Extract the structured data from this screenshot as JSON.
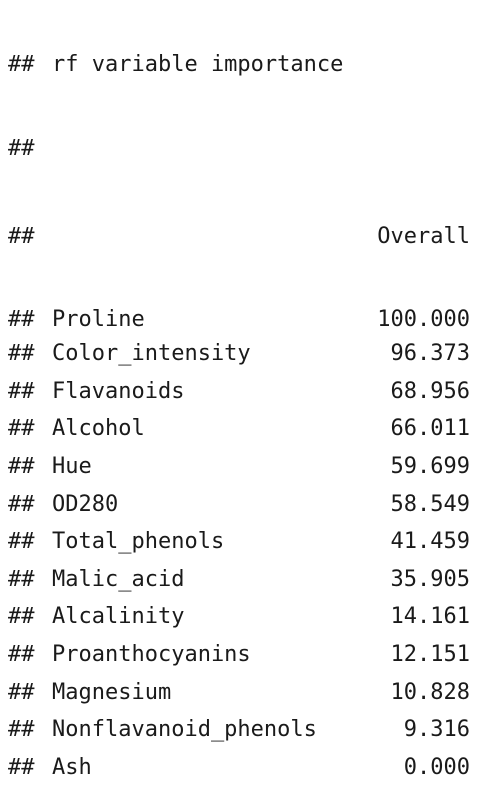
{
  "console": {
    "prefix": "##",
    "title": "rf variable importance",
    "column_header": "Overall",
    "rows": [
      {
        "name": "Proline",
        "value": "100.000"
      },
      {
        "name": "Color_intensity",
        "value": "96.373"
      },
      {
        "name": "Flavanoids",
        "value": "68.956"
      },
      {
        "name": "Alcohol",
        "value": "66.011"
      },
      {
        "name": "Hue",
        "value": "59.699"
      },
      {
        "name": "OD280",
        "value": "58.549"
      },
      {
        "name": "Total_phenols",
        "value": "41.459"
      },
      {
        "name": "Malic_acid",
        "value": "35.905"
      },
      {
        "name": "Alcalinity",
        "value": "14.161"
      },
      {
        "name": "Proanthocyanins",
        "value": "12.151"
      },
      {
        "name": "Magnesium",
        "value": "10.828"
      },
      {
        "name": "Nonflavanoid_phenols",
        "value": "9.316"
      },
      {
        "name": "Ash",
        "value": "0.000"
      }
    ]
  }
}
